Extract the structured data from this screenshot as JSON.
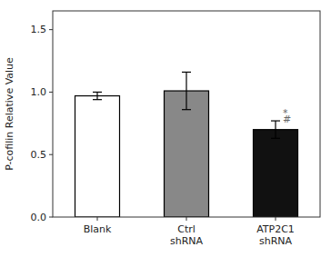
{
  "chart_data": {
    "type": "bar",
    "categories": [
      "Blank",
      "Ctrl\nshRNA",
      "ATP2C1\nshRNA"
    ],
    "values": [
      0.97,
      1.01,
      0.7
    ],
    "errors": [
      0.03,
      0.15,
      0.07
    ],
    "colors": [
      "white",
      "#888888",
      "#111111"
    ],
    "ylabel": "P-cofilin Relative Value",
    "ylim": [
      0,
      1.65
    ],
    "yticks": [
      {
        "value": 0.0,
        "label": "0.0"
      },
      0.5,
      {
        "value": 1.0,
        "label": "1.0"
      },
      1.5
    ],
    "annotations": [
      {
        "text": "*",
        "x": 2,
        "y": 0.805,
        "color": "#666666"
      },
      {
        "text": "#",
        "x": 2,
        "y": 0.755,
        "color": "#666666"
      }
    ],
    "grid": false
  }
}
